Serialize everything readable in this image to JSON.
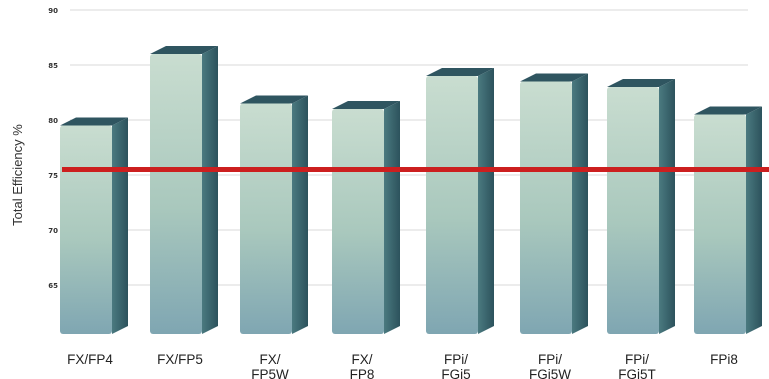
{
  "chart_data": {
    "type": "bar",
    "categories": [
      [
        "FX/FP4"
      ],
      [
        "FX/FP5"
      ],
      [
        "FX/",
        "FP5W"
      ],
      [
        "FX/",
        "FP8"
      ],
      [
        "FPi/",
        "FGi5"
      ],
      [
        "FPi/",
        "FGi5W"
      ],
      [
        "FPi/",
        "FGi5T"
      ],
      [
        "FPi8"
      ]
    ],
    "values": [
      79.5,
      86,
      81.5,
      81,
      84,
      83.5,
      83,
      80.5
    ],
    "ylabel": "Total Efficiency %",
    "ylim": [
      60,
      90
    ],
    "yticks": [
      {
        "value": 90,
        "label": "90"
      },
      {
        "value": 85,
        "label": "85"
      },
      {
        "value": 80,
        "label": "80"
      },
      {
        "value": 75,
        "label": "75"
      },
      {
        "value": 70,
        "label": "70"
      },
      {
        "value": 65,
        "label": "65"
      }
    ],
    "reference_line": {
      "value": 75.5,
      "color": "#cc1f1f"
    },
    "grid": true,
    "colors": {
      "bar_front": "#b4cfc0",
      "bar_side": "#3e6a72",
      "bar_top": "#2f5560"
    }
  }
}
